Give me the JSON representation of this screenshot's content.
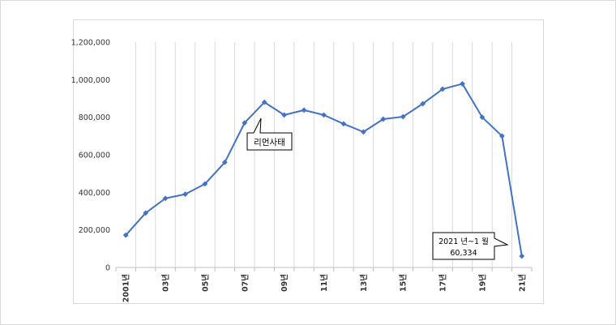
{
  "chart_data": {
    "type": "line",
    "title": "",
    "xlabel": "",
    "ylabel": "",
    "ylim": [
      0,
      1200000
    ],
    "yticks": [
      "1,200,000",
      "1,000,000",
      "800,000",
      "600,000",
      "400,000",
      "200,000",
      "0"
    ],
    "x_tick_labels": [
      "2001년",
      "03년",
      "05년",
      "07년",
      "09년",
      "11년",
      "13년",
      "15년",
      "17년",
      "19년",
      "21년"
    ],
    "categories": [
      "2001",
      "2002",
      "2003",
      "2004",
      "2005",
      "2006",
      "2007",
      "2008",
      "2009",
      "2010",
      "2011",
      "2012",
      "2013",
      "2014",
      "2015",
      "2016",
      "2017",
      "2018",
      "2019",
      "2020",
      "2021"
    ],
    "series": [
      {
        "values": [
          172000,
          290000,
          368000,
          390000,
          445000,
          560000,
          770000,
          880000,
          812000,
          838000,
          812000,
          765000,
          722000,
          790000,
          803000,
          872000,
          950000,
          978000,
          800000,
          700000,
          60334
        ]
      }
    ],
    "grid": "vertical",
    "line_color": "#4472c4",
    "annotations": [
      {
        "label": "리먼사태"
      },
      {
        "label_line1": "2021 년~1 월",
        "label_line2": "60,334"
      }
    ]
  }
}
